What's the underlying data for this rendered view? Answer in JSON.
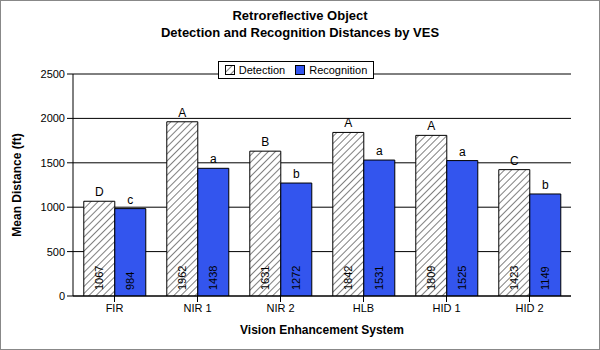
{
  "chart_data": {
    "type": "bar",
    "title": "Retroreflective Object\nDetection and Recognition Distances by VES",
    "x_label": "Vision Enhancement System",
    "y_label": "Mean Distance (ft)",
    "categories": [
      "FIR",
      "NIR 1",
      "NIR 2",
      "HLB",
      "HID 1",
      "HID 2"
    ],
    "series": [
      {
        "name": "Detection",
        "color": "#808080",
        "values": [
          1067,
          1962,
          1631,
          1842,
          1809,
          1423
        ],
        "group_letters": [
          "D",
          "A",
          "B",
          "A",
          "A",
          "C"
        ]
      },
      {
        "name": "Recognition",
        "color": "#3355ee",
        "values": [
          984,
          1438,
          1272,
          1531,
          1525,
          1149
        ],
        "group_letters": [
          "c",
          "a",
          "b",
          "a",
          "a",
          "b"
        ]
      }
    ],
    "ylim": [
      0,
      2500
    ],
    "yticks": [
      0,
      500,
      1000,
      1500,
      2000,
      2500
    ],
    "grid": true,
    "legend": "top",
    "data_labels": true
  }
}
